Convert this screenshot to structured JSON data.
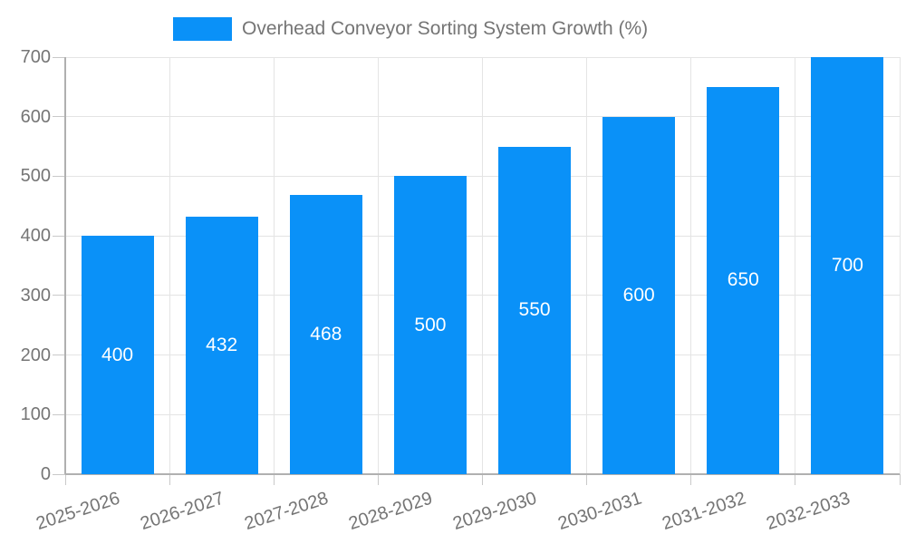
{
  "chart_data": {
    "type": "bar",
    "title": "Overhead Conveyor Sorting System Growth (%)",
    "categories": [
      "2025-2026",
      "2026-2027",
      "2027-2028",
      "2028-2029",
      "2029-2030",
      "2030-2031",
      "2031-2032",
      "2032-2033"
    ],
    "values": [
      400,
      432,
      468,
      500,
      550,
      600,
      650,
      700
    ],
    "series": [
      {
        "name": "Overhead Conveyor Sorting System Growth (%)",
        "values": [
          400,
          432,
          468,
          500,
          550,
          600,
          650,
          700
        ]
      }
    ],
    "xlabel": "",
    "ylabel": "",
    "ylim": [
      0,
      700
    ],
    "ytick_step": 100,
    "ytick_labels": [
      "0",
      "100",
      "200",
      "300",
      "400",
      "500",
      "600",
      "700"
    ],
    "grid": true,
    "legend_position": "top",
    "bar_labels_shown": true,
    "colors": {
      "bar": "#0a91f8",
      "bar_label": "#ffffff",
      "axis": "#b0b0b0",
      "grid": "#e4e4e4",
      "tick": "#c9c9c9",
      "text": "#757575"
    }
  }
}
